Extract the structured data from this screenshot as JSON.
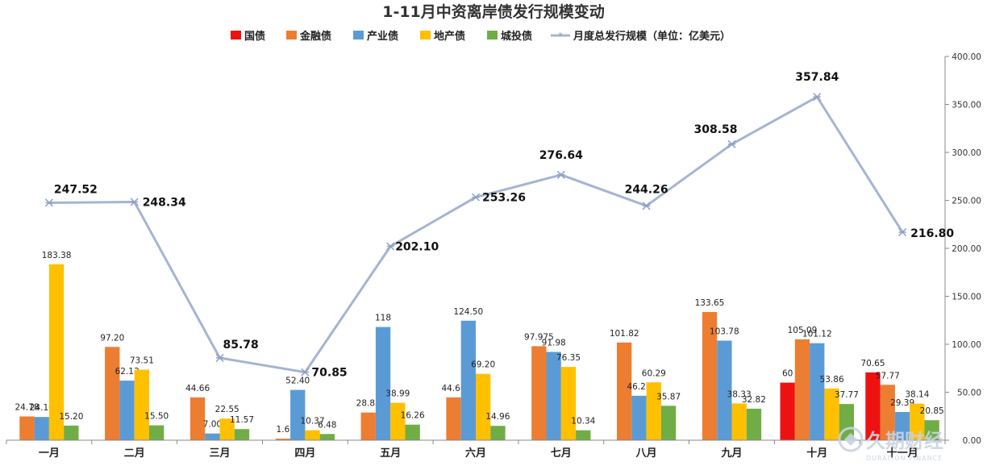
{
  "chart_data": {
    "type": "bar",
    "title": "1-11月中资离岸债发行规模变动",
    "categories": [
      "一月",
      "二月",
      "三月",
      "四月",
      "五月",
      "六月",
      "七月",
      "八月",
      "九月",
      "十月",
      "十一月"
    ],
    "series": [
      {
        "name": "国债",
        "color": "#ee1111",
        "values": [
          null,
          null,
          null,
          null,
          null,
          null,
          null,
          null,
          null,
          60,
          70.65
        ],
        "labels": [
          "",
          "",
          "",
          "",
          "",
          "",
          "",
          "",
          "",
          "60",
          "70.65"
        ]
      },
      {
        "name": "金融债",
        "color": "#ed7d31",
        "values": [
          24.78,
          97.2,
          44.66,
          1.6,
          28.85,
          44.6,
          97.975,
          101.82,
          133.65,
          105.09,
          57.77
        ],
        "labels": [
          "24.78",
          "97.20",
          "44.66",
          "1.6",
          "28.85",
          "44.60",
          "97.975",
          "101.82",
          "133.65",
          "105.09",
          "57.77"
        ]
      },
      {
        "name": "产业债",
        "color": "#5b9bd5",
        "values": [
          24.16,
          62.13,
          7.0,
          52.4,
          118,
          124.5,
          91.98,
          46.28,
          103.78,
          101.12,
          29.39
        ],
        "labels": [
          "24.16",
          "62.13",
          "7.00",
          "52.40",
          "118",
          "124.50",
          "91.98",
          "46.28",
          "103.78",
          "101.12",
          "29.39"
        ]
      },
      {
        "name": "地产债",
        "color": "#ffc000",
        "values": [
          183.38,
          73.51,
          22.55,
          10.37,
          38.99,
          69.2,
          76.35,
          60.29,
          38.33,
          53.86,
          38.14
        ],
        "labels": [
          "183.38",
          "73.51",
          "22.55",
          "10.37",
          "38.99",
          "69.20",
          "76.35",
          "60.29",
          "38.33",
          "53.86",
          "38.14"
        ]
      },
      {
        "name": "城投债",
        "color": "#70ad47",
        "values": [
          15.2,
          15.5,
          11.57,
          6.48,
          16.26,
          14.96,
          10.34,
          35.87,
          32.82,
          37.77,
          20.85
        ],
        "labels": [
          "15.20",
          "15.50",
          "11.57",
          "6.48",
          "16.26",
          "14.96",
          "10.34",
          "35.87",
          "32.82",
          "37.77",
          "20.85"
        ]
      }
    ],
    "line_series": {
      "name": "月度总发行规模（单位：亿美元）",
      "color": "#a5b4d4",
      "axis": "right",
      "values": [
        247.52,
        248.34,
        85.78,
        70.85,
        202.1,
        253.26,
        276.64,
        244.26,
        308.58,
        357.84,
        216.8
      ],
      "labels": [
        "247.52",
        "248.34",
        "85.78",
        "70.85",
        "202.10",
        "253.26",
        "276.64",
        "244.26",
        "308.58",
        "357.84",
        "216.80"
      ]
    },
    "y_axis": {
      "position": "right",
      "ylim": [
        0,
        400
      ],
      "ticks": [
        0,
        50,
        100,
        150,
        200,
        250,
        300,
        350,
        400
      ],
      "tick_labels": [
        "0.00",
        "50.00",
        "100.00",
        "150.00",
        "200.00",
        "250.00",
        "300.00",
        "350.00",
        "400.00"
      ]
    },
    "bar_axis_max": 400,
    "legend_position": "top",
    "grid": false
  },
  "watermark": {
    "text_cn": "久期财经",
    "text_en": "DURATION FINANCE"
  }
}
